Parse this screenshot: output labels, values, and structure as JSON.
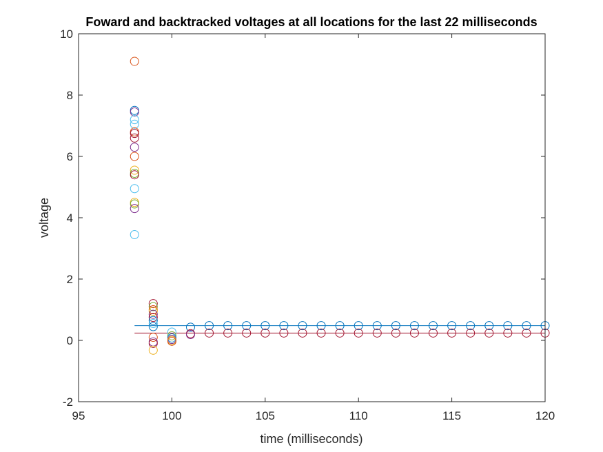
{
  "chart_data": {
    "type": "scatter",
    "title": "Foward and backtracked voltages at all locations for the last 22 milliseconds",
    "xlabel": "time (milliseconds)",
    "ylabel": "voltage",
    "xlim": [
      95,
      120
    ],
    "ylim": [
      -2,
      10
    ],
    "xticks": [
      95,
      100,
      105,
      110,
      115,
      120
    ],
    "yticks": [
      -2,
      0,
      2,
      4,
      6,
      8,
      10
    ],
    "grid": false,
    "box": true,
    "lines": [
      {
        "color": "#0072BD",
        "x": [
          98,
          120
        ],
        "y": [
          0.48,
          0.48
        ]
      },
      {
        "color": "#A2142F",
        "x": [
          98,
          120
        ],
        "y": [
          0.24,
          0.24
        ]
      }
    ],
    "points": [
      {
        "x": 98,
        "y": 9.1,
        "color": "#D95319"
      },
      {
        "x": 98,
        "y": 7.5,
        "color": "#0072BD"
      },
      {
        "x": 98,
        "y": 7.45,
        "color": "#7E2F8E"
      },
      {
        "x": 98,
        "y": 7.2,
        "color": "#4DBEEE"
      },
      {
        "x": 98,
        "y": 7.05,
        "color": "#4DBEEE"
      },
      {
        "x": 98,
        "y": 6.8,
        "color": "#D95319"
      },
      {
        "x": 98,
        "y": 6.75,
        "color": "#A2142F"
      },
      {
        "x": 98,
        "y": 6.6,
        "color": "#A2142F"
      },
      {
        "x": 98,
        "y": 6.3,
        "color": "#7E2F8E"
      },
      {
        "x": 98,
        "y": 6.0,
        "color": "#D95319"
      },
      {
        "x": 98,
        "y": 5.55,
        "color": "#EDB120"
      },
      {
        "x": 98,
        "y": 5.45,
        "color": "#77AC30"
      },
      {
        "x": 98,
        "y": 5.4,
        "color": "#A2142F"
      },
      {
        "x": 98,
        "y": 4.95,
        "color": "#4DBEEE"
      },
      {
        "x": 98,
        "y": 4.5,
        "color": "#EDB120"
      },
      {
        "x": 98,
        "y": 4.45,
        "color": "#77AC30"
      },
      {
        "x": 98,
        "y": 4.3,
        "color": "#7E2F8E"
      },
      {
        "x": 98,
        "y": 3.45,
        "color": "#4DBEEE"
      },
      {
        "x": 99,
        "y": 1.2,
        "color": "#A2142F"
      },
      {
        "x": 99,
        "y": 1.1,
        "color": "#77AC30"
      },
      {
        "x": 99,
        "y": 1.0,
        "color": "#D95319"
      },
      {
        "x": 99,
        "y": 0.95,
        "color": "#EDB120"
      },
      {
        "x": 99,
        "y": 0.85,
        "color": "#7E2F8E"
      },
      {
        "x": 99,
        "y": 0.75,
        "color": "#A2142F"
      },
      {
        "x": 99,
        "y": 0.65,
        "color": "#0072BD"
      },
      {
        "x": 99,
        "y": 0.55,
        "color": "#4DBEEE"
      },
      {
        "x": 99,
        "y": 0.45,
        "color": "#0072BD"
      },
      {
        "x": 99,
        "y": 0.1,
        "color": "#D95319"
      },
      {
        "x": 99,
        "y": -0.05,
        "color": "#7E2F8E"
      },
      {
        "x": 99,
        "y": -0.1,
        "color": "#A2142F"
      },
      {
        "x": 99,
        "y": -0.32,
        "color": "#EDB120"
      },
      {
        "x": 100,
        "y": 0.27,
        "color": "#4DBEEE"
      },
      {
        "x": 100,
        "y": 0.15,
        "color": "#77AC30"
      },
      {
        "x": 100,
        "y": 0.08,
        "color": "#0072BD"
      },
      {
        "x": 100,
        "y": 0.03,
        "color": "#7E2F8E"
      },
      {
        "x": 100,
        "y": 0.0,
        "color": "#EDB120"
      },
      {
        "x": 100,
        "y": -0.03,
        "color": "#D95319"
      },
      {
        "x": 101,
        "y": 0.43,
        "color": "#0072BD"
      },
      {
        "x": 101,
        "y": 0.22,
        "color": "#A2142F"
      },
      {
        "x": 101,
        "y": 0.19,
        "color": "#7E2F8E"
      }
    ],
    "tracks": [
      {
        "color": "#0072BD",
        "x_from": 102,
        "x_to": 120,
        "y": 0.48
      },
      {
        "color": "#A2142F",
        "x_from": 102,
        "x_to": 120,
        "y": 0.24
      }
    ]
  }
}
